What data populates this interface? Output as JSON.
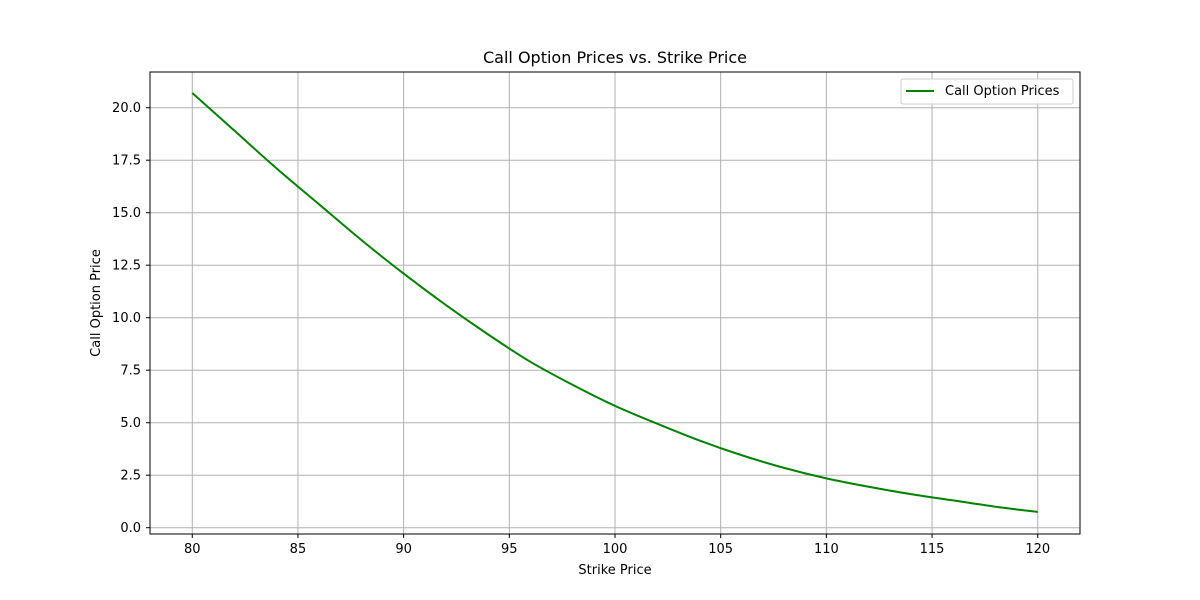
{
  "chart_data": {
    "type": "line",
    "title": "Call Option Prices vs. Strike Price",
    "xlabel": "Strike Price",
    "ylabel": "Call Option Price",
    "xlim": [
      78,
      122
    ],
    "ylim": [
      -0.3,
      21.7
    ],
    "xticks": [
      80,
      85,
      90,
      95,
      100,
      105,
      110,
      115,
      120
    ],
    "xtick_labels": [
      "80",
      "85",
      "90",
      "95",
      "100",
      "105",
      "110",
      "115",
      "120"
    ],
    "yticks": [
      0.0,
      2.5,
      5.0,
      7.5,
      10.0,
      12.5,
      15.0,
      17.5,
      20.0
    ],
    "ytick_labels": [
      "0.0",
      "2.5",
      "5.0",
      "7.5",
      "10.0",
      "12.5",
      "15.0",
      "17.5",
      "20.0"
    ],
    "grid": true,
    "legend_position": "top-right",
    "series": [
      {
        "name": "Call Option Prices",
        "color": "#008000",
        "x": [
          80,
          82,
          84,
          86,
          88,
          90,
          92,
          94,
          96,
          98,
          100,
          102,
          104,
          106,
          108,
          110,
          112,
          114,
          116,
          118,
          120
        ],
        "y": [
          20.7,
          18.9,
          17.1,
          15.4,
          13.7,
          12.1,
          10.6,
          9.2,
          7.9,
          6.8,
          5.8,
          4.95,
          4.15,
          3.45,
          2.85,
          2.35,
          1.95,
          1.6,
          1.3,
          1.0,
          0.75
        ]
      }
    ]
  }
}
